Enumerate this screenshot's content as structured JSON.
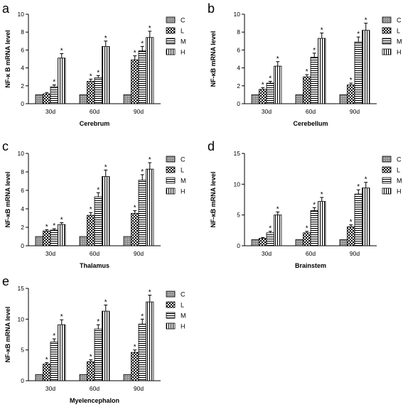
{
  "legend_labels": [
    "C",
    "L",
    "M",
    "H"
  ],
  "colors": {
    "bar_stroke": "#000000",
    "background": "#ffffff"
  },
  "chart_data": [
    {
      "panel": "a",
      "type": "bar",
      "xlabel": "Cerebrum",
      "ylabel": "NF-κ B mRNA level",
      "ylim": [
        0,
        10
      ],
      "yticks": [
        0,
        2,
        4,
        6,
        8,
        10
      ],
      "categories": [
        "30d",
        "60d",
        "90d"
      ],
      "series": [
        {
          "name": "C",
          "values": [
            1,
            1,
            1
          ],
          "errors": [
            0,
            0,
            0
          ],
          "sig": [
            false,
            false,
            false
          ]
        },
        {
          "name": "L",
          "values": [
            1.1,
            2.5,
            4.9
          ],
          "errors": [
            0.15,
            0.25,
            0.45
          ],
          "sig": [
            false,
            true,
            true
          ]
        },
        {
          "name": "M",
          "values": [
            1.9,
            2.9,
            5.9
          ],
          "errors": [
            0.2,
            0.25,
            0.5
          ],
          "sig": [
            true,
            true,
            true
          ]
        },
        {
          "name": "H",
          "values": [
            5.1,
            6.4,
            7.4
          ],
          "errors": [
            0.5,
            0.6,
            0.7
          ],
          "sig": [
            true,
            true,
            true
          ]
        }
      ],
      "legend": "top-right"
    },
    {
      "panel": "b",
      "type": "bar",
      "xlabel": "Cerebellum",
      "ylabel": "NF-κB mRNA level",
      "ylim": [
        0,
        10
      ],
      "yticks": [
        0,
        2,
        4,
        6,
        8,
        10
      ],
      "categories": [
        "30d",
        "60d",
        "90d"
      ],
      "series": [
        {
          "name": "C",
          "values": [
            1,
            1,
            1
          ],
          "errors": [
            0,
            0,
            0
          ],
          "sig": [
            false,
            false,
            false
          ]
        },
        {
          "name": "L",
          "values": [
            1.6,
            3.0,
            2.1
          ],
          "errors": [
            0.2,
            0.25,
            0.2
          ],
          "sig": [
            true,
            true,
            true
          ]
        },
        {
          "name": "M",
          "values": [
            2.3,
            5.2,
            6.9
          ],
          "errors": [
            0.2,
            0.45,
            0.55
          ],
          "sig": [
            true,
            true,
            true
          ]
        },
        {
          "name": "H",
          "values": [
            4.2,
            7.3,
            8.2
          ],
          "errors": [
            0.5,
            0.6,
            0.8
          ],
          "sig": [
            true,
            true,
            true
          ]
        }
      ],
      "legend": "top-right"
    },
    {
      "panel": "c",
      "type": "bar",
      "xlabel": "Thalamus",
      "ylabel": "NF-κB mRNA level",
      "ylim": [
        0,
        10
      ],
      "yticks": [
        0,
        2,
        4,
        6,
        8,
        10
      ],
      "categories": [
        "30d",
        "60d",
        "90d"
      ],
      "series": [
        {
          "name": "C",
          "values": [
            1,
            1,
            1
          ],
          "errors": [
            0,
            0,
            0
          ],
          "sig": [
            false,
            false,
            false
          ]
        },
        {
          "name": "L",
          "values": [
            1.6,
            3.3,
            3.5
          ],
          "errors": [
            0.15,
            0.3,
            0.3
          ],
          "sig": [
            true,
            true,
            true
          ]
        },
        {
          "name": "M",
          "values": [
            1.7,
            5.3,
            7.1
          ],
          "errors": [
            0.15,
            0.45,
            0.6
          ],
          "sig": [
            true,
            true,
            true
          ]
        },
        {
          "name": "H",
          "values": [
            2.3,
            7.5,
            8.3
          ],
          "errors": [
            0.2,
            0.7,
            0.7
          ],
          "sig": [
            true,
            true,
            true
          ]
        }
      ],
      "legend": "top-right"
    },
    {
      "panel": "d",
      "type": "bar",
      "xlabel": "Brainstem",
      "ylabel": "NF-κB mRNA level",
      "ylim": [
        0,
        15
      ],
      "yticks": [
        0,
        5,
        10,
        15
      ],
      "categories": [
        "30d",
        "60d",
        "90d"
      ],
      "series": [
        {
          "name": "C",
          "values": [
            1,
            1,
            1
          ],
          "errors": [
            0,
            0,
            0
          ],
          "sig": [
            false,
            false,
            false
          ]
        },
        {
          "name": "L",
          "values": [
            1.2,
            2.1,
            3.1
          ],
          "errors": [
            0.15,
            0.25,
            0.3
          ],
          "sig": [
            false,
            true,
            true
          ]
        },
        {
          "name": "M",
          "values": [
            2.1,
            5.7,
            8.4
          ],
          "errors": [
            0.25,
            0.5,
            0.7
          ],
          "sig": [
            true,
            true,
            true
          ]
        },
        {
          "name": "H",
          "values": [
            5.0,
            7.2,
            9.4
          ],
          "errors": [
            0.5,
            0.65,
            0.9
          ],
          "sig": [
            true,
            true,
            true
          ]
        }
      ],
      "legend": "top-right"
    },
    {
      "panel": "e",
      "type": "bar",
      "xlabel": "Myelencephalon",
      "ylabel": "NF-κB mRNA level",
      "ylim": [
        0,
        15
      ],
      "yticks": [
        0,
        5,
        10,
        15
      ],
      "categories": [
        "30d",
        "60d",
        "90d"
      ],
      "series": [
        {
          "name": "C",
          "values": [
            1,
            1,
            1
          ],
          "errors": [
            0,
            0,
            0
          ],
          "sig": [
            false,
            false,
            false
          ]
        },
        {
          "name": "L",
          "values": [
            2.7,
            3.1,
            4.6
          ],
          "errors": [
            0.25,
            0.3,
            0.4
          ],
          "sig": [
            true,
            true,
            true
          ]
        },
        {
          "name": "M",
          "values": [
            6.3,
            8.4,
            9.2
          ],
          "errors": [
            0.5,
            0.7,
            0.8
          ],
          "sig": [
            true,
            true,
            true
          ]
        },
        {
          "name": "H",
          "values": [
            9.1,
            11.3,
            12.8
          ],
          "errors": [
            0.8,
            1.0,
            1.1
          ],
          "sig": [
            true,
            true,
            true
          ]
        }
      ],
      "legend": "top-right"
    }
  ]
}
